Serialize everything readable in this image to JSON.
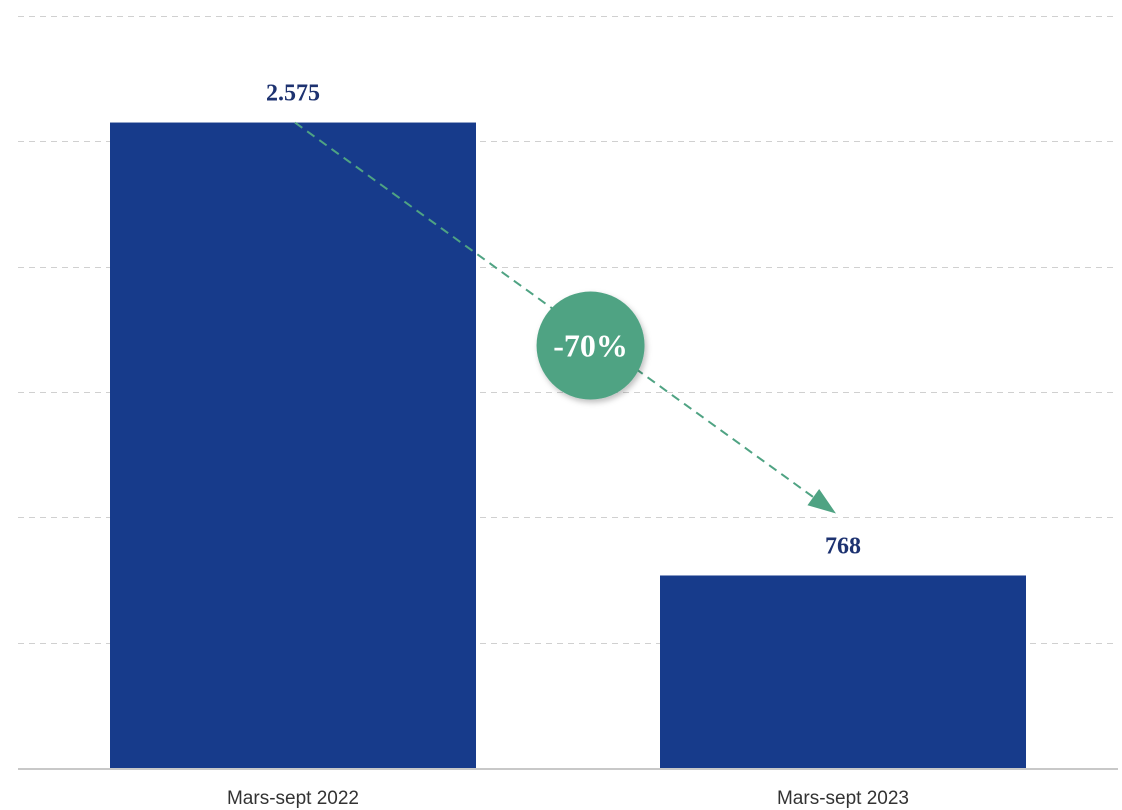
{
  "chart_data": {
    "type": "bar",
    "categories": [
      "Mars-sept 2022",
      "Mars-sept 2023"
    ],
    "values": [
      2575,
      768
    ],
    "value_labels": [
      "2.575",
      "768"
    ],
    "ylim": [
      0,
      3000
    ],
    "grid": true,
    "bar_color": "#173b8b",
    "annotation": {
      "text": "-70%",
      "from": 0,
      "to": 1,
      "color": "#4fa383"
    }
  }
}
